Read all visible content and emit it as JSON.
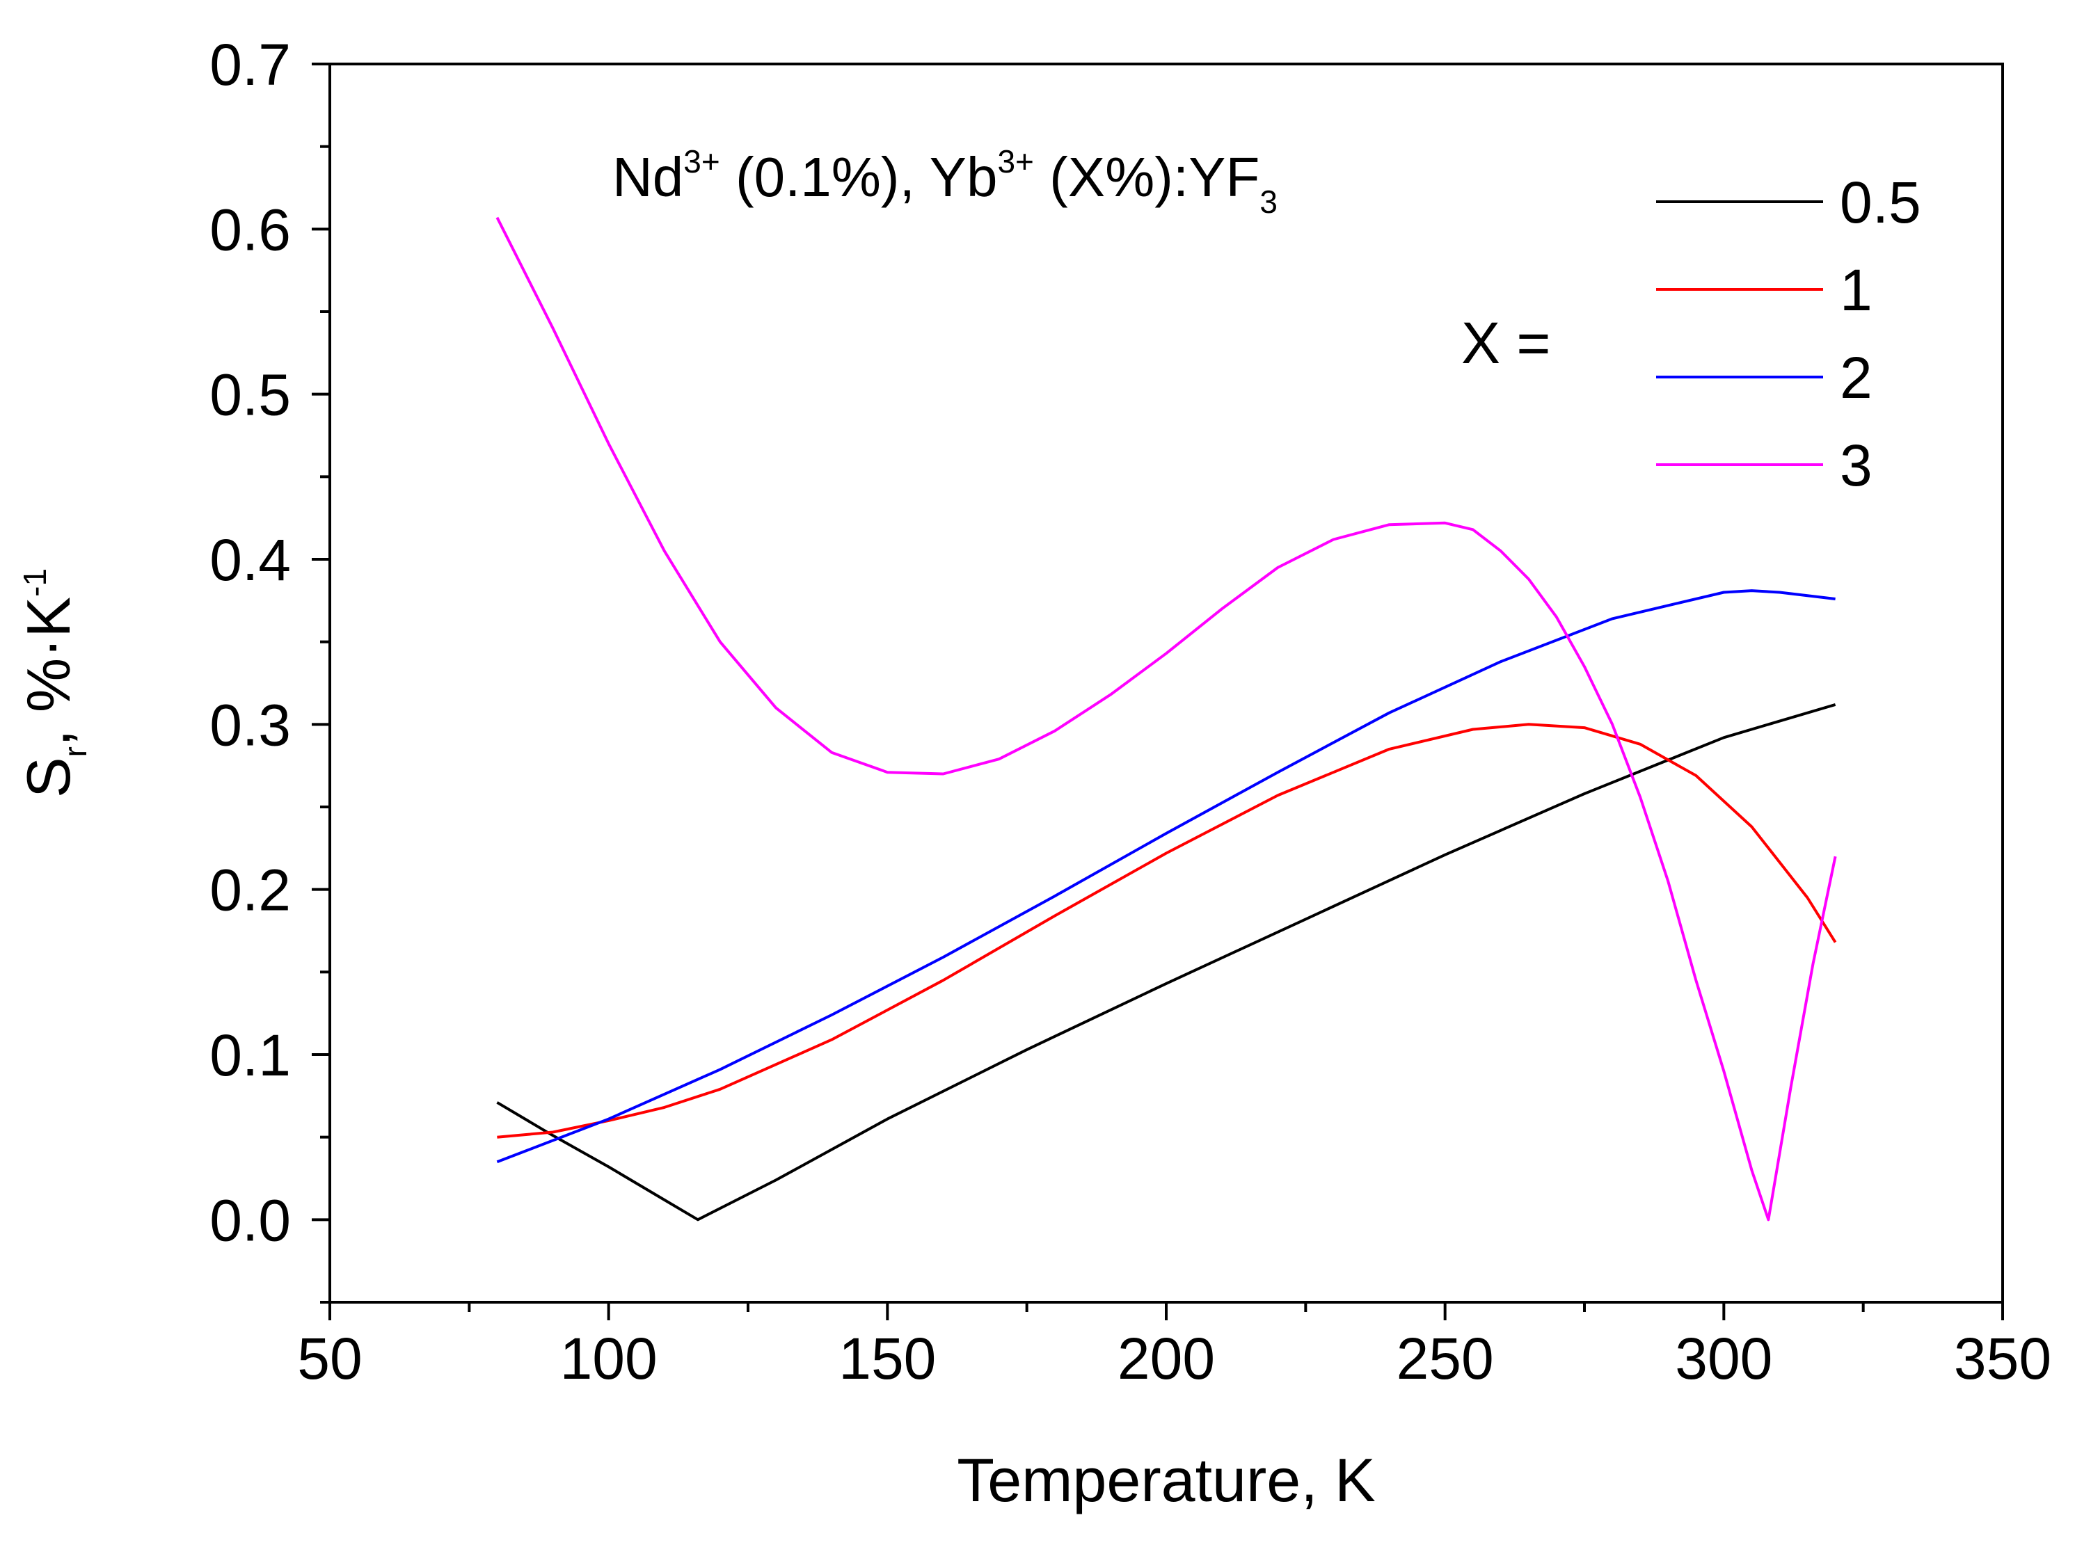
{
  "chart_data": {
    "type": "line",
    "title": "",
    "annotation": {
      "parts": [
        {
          "text": "Nd",
          "style": "normal"
        },
        {
          "text": "3+",
          "style": "sup"
        },
        {
          "text": " (0.1%), Yb",
          "style": "normal"
        },
        {
          "text": "3+",
          "style": "sup"
        },
        {
          "text": " (X%):YF",
          "style": "normal"
        },
        {
          "text": "3",
          "style": "sub"
        }
      ]
    },
    "xlabel": "Temperature, K",
    "ylabel": {
      "parts": [
        {
          "text": "S",
          "style": "normal"
        },
        {
          "text": "r",
          "style": "sub"
        },
        {
          "text": ", %·K",
          "style": "normal"
        },
        {
          "text": "-1",
          "style": "sup"
        }
      ]
    },
    "xlim": [
      50,
      350
    ],
    "ylim": [
      -0.05,
      0.7
    ],
    "xticks": [
      50,
      100,
      150,
      200,
      250,
      300,
      350
    ],
    "xtick_labels": [
      "50",
      "100",
      "150",
      "200",
      "250",
      "300",
      "350"
    ],
    "yticks": [
      0.0,
      0.1,
      0.2,
      0.3,
      0.4,
      0.5,
      0.6,
      0.7
    ],
    "ytick_labels": [
      "0.0",
      "0.1",
      "0.2",
      "0.3",
      "0.4",
      "0.5",
      "0.6",
      "0.7"
    ],
    "grid": false,
    "legend": {
      "position": "top-right",
      "prefix": "X ="
    },
    "series": [
      {
        "name": "0.5",
        "color": "#000000",
        "x": [
          80,
          90,
          100,
          110,
          116,
          130,
          150,
          175,
          200,
          225,
          250,
          275,
          300,
          320
        ],
        "y": [
          0.071,
          0.051,
          0.032,
          0.012,
          0.0,
          0.024,
          0.061,
          0.103,
          0.143,
          0.182,
          0.221,
          0.258,
          0.292,
          0.312
        ]
      },
      {
        "name": "1",
        "color": "#ff0000",
        "x": [
          80,
          90,
          100,
          110,
          120,
          140,
          160,
          180,
          200,
          220,
          240,
          255,
          265,
          275,
          285,
          295,
          305,
          315,
          320
        ],
        "y": [
          0.05,
          0.053,
          0.06,
          0.068,
          0.079,
          0.109,
          0.145,
          0.184,
          0.222,
          0.257,
          0.285,
          0.297,
          0.3,
          0.298,
          0.288,
          0.269,
          0.238,
          0.195,
          0.168
        ]
      },
      {
        "name": "2",
        "color": "#0000ff",
        "x": [
          80,
          100,
          120,
          140,
          160,
          180,
          200,
          220,
          240,
          260,
          280,
          300,
          305,
          310,
          320
        ],
        "y": [
          0.035,
          0.061,
          0.091,
          0.124,
          0.159,
          0.196,
          0.234,
          0.271,
          0.307,
          0.338,
          0.364,
          0.38,
          0.381,
          0.38,
          0.376
        ]
      },
      {
        "name": "3",
        "color": "#ff00ff",
        "x": [
          80,
          90,
          100,
          110,
          120,
          130,
          140,
          150,
          160,
          170,
          180,
          190,
          200,
          210,
          220,
          230,
          240,
          250,
          255,
          260,
          265,
          270,
          275,
          280,
          285,
          290,
          295,
          300,
          305,
          308,
          312,
          316,
          320
        ],
        "y": [
          0.607,
          0.54,
          0.47,
          0.405,
          0.35,
          0.31,
          0.283,
          0.271,
          0.27,
          0.279,
          0.296,
          0.318,
          0.343,
          0.37,
          0.395,
          0.412,
          0.421,
          0.422,
          0.418,
          0.405,
          0.388,
          0.365,
          0.335,
          0.3,
          0.256,
          0.205,
          0.145,
          0.09,
          0.03,
          0.0,
          0.08,
          0.155,
          0.22
        ]
      }
    ]
  }
}
